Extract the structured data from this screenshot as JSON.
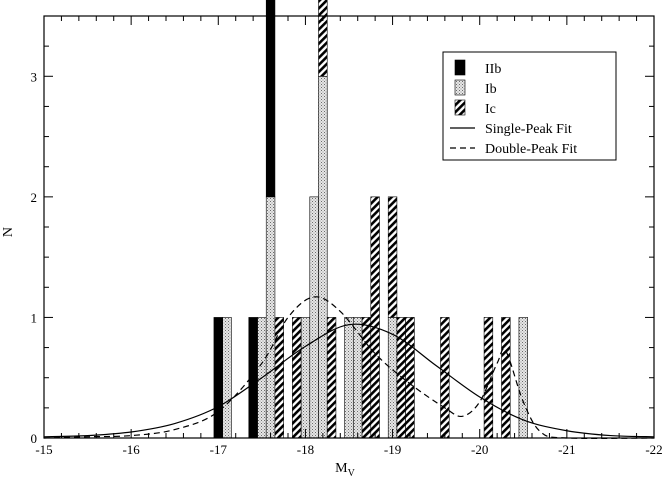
{
  "chart_data": {
    "type": "bar",
    "xlabel": "M",
    "xlabel_sub": "V",
    "ylabel": "N",
    "xlim": [
      -15,
      -22
    ],
    "ylim": [
      0,
      3.5
    ],
    "xticks": [
      -15,
      -16,
      -17,
      -18,
      -19,
      -20,
      -21,
      -22
    ],
    "yticks": [
      0,
      1,
      2,
      3
    ],
    "grid": false,
    "legend_position": "top-right",
    "bar_width": 0.1,
    "series": [
      {
        "name": "IIb",
        "fill": "#000000",
        "pattern": "solid",
        "bars": [
          [
            -17.0,
            1
          ],
          [
            -17.4,
            1
          ],
          [
            -17.6,
            3
          ]
        ]
      },
      {
        "name": "Ib",
        "fill": "#d9d9d9",
        "pattern": "dots",
        "bars": [
          [
            -17.1,
            1
          ],
          [
            -17.5,
            1
          ],
          [
            -17.6,
            2
          ],
          [
            -18.0,
            1
          ],
          [
            -18.1,
            2
          ],
          [
            -18.2,
            3
          ],
          [
            -18.5,
            1
          ],
          [
            -18.6,
            1
          ],
          [
            -19.0,
            1
          ],
          [
            -20.5,
            1
          ]
        ]
      },
      {
        "name": "Ic",
        "fill": "#ffffff",
        "pattern": "hatch",
        "bars": [
          [
            -17.6,
            1
          ],
          [
            -17.7,
            1
          ],
          [
            -17.9,
            1
          ],
          [
            -18.2,
            2
          ],
          [
            -18.3,
            1
          ],
          [
            -18.7,
            1
          ],
          [
            -18.8,
            2
          ],
          [
            -19.0,
            1
          ],
          [
            -19.1,
            1
          ],
          [
            -19.2,
            1
          ],
          [
            -19.6,
            1
          ],
          [
            -20.1,
            1
          ],
          [
            -20.3,
            1
          ]
        ]
      }
    ],
    "curves": [
      {
        "name": "Single-Peak Fit",
        "style": "solid",
        "points": [
          [
            -15.0,
            0.01
          ],
          [
            -15.5,
            0.02
          ],
          [
            -16.0,
            0.05
          ],
          [
            -16.5,
            0.12
          ],
          [
            -17.0,
            0.26
          ],
          [
            -17.5,
            0.5
          ],
          [
            -18.0,
            0.76
          ],
          [
            -18.5,
            0.94
          ],
          [
            -19.0,
            0.86
          ],
          [
            -19.5,
            0.6
          ],
          [
            -20.0,
            0.34
          ],
          [
            -20.5,
            0.15
          ],
          [
            -21.0,
            0.06
          ],
          [
            -21.5,
            0.02
          ],
          [
            -22.0,
            0.01
          ]
        ]
      },
      {
        "name": "Double-Peak Fit",
        "style": "dashed",
        "points": [
          [
            -15.0,
            0.0
          ],
          [
            -15.5,
            0.01
          ],
          [
            -16.0,
            0.02
          ],
          [
            -16.5,
            0.07
          ],
          [
            -17.0,
            0.22
          ],
          [
            -17.5,
            0.62
          ],
          [
            -17.8,
            1.0
          ],
          [
            -18.1,
            1.17
          ],
          [
            -18.4,
            1.05
          ],
          [
            -18.8,
            0.7
          ],
          [
            -19.2,
            0.45
          ],
          [
            -19.6,
            0.25
          ],
          [
            -19.8,
            0.18
          ],
          [
            -20.0,
            0.3
          ],
          [
            -20.2,
            0.62
          ],
          [
            -20.3,
            0.72
          ],
          [
            -20.5,
            0.3
          ],
          [
            -20.7,
            0.05
          ],
          [
            -21.0,
            0.0
          ],
          [
            -22.0,
            0.0
          ]
        ]
      }
    ]
  }
}
